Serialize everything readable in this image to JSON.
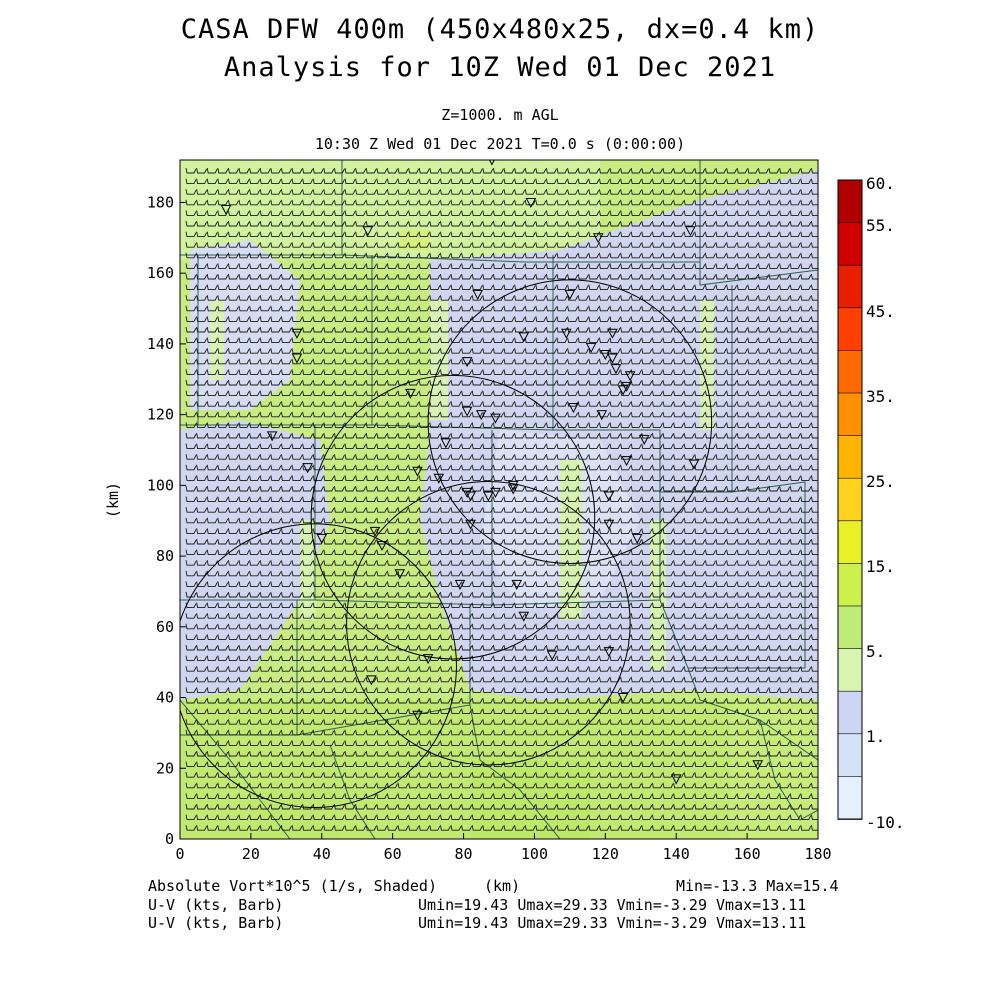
{
  "header": {
    "title_line1": "CASA DFW 400m (450x480x25, dx=0.4 km)",
    "title_line2": "Analysis for 10Z Wed 01 Dec 2021",
    "level": "Z=1000. m AGL",
    "valid_time": "10:30 Z Wed 01 Dec 2021   T=0.0 s (0:00:00)"
  },
  "axes": {
    "x_label": "(km)",
    "y_label": "(km)",
    "x_ticks": [
      "0",
      "20",
      "40",
      "60",
      "80",
      "100",
      "120",
      "140",
      "160",
      "180"
    ],
    "y_ticks": [
      "0",
      "20",
      "40",
      "60",
      "80",
      "100",
      "120",
      "140",
      "160",
      "180"
    ],
    "xlim": [
      0,
      180
    ],
    "ylim": [
      0,
      192
    ]
  },
  "colorbar": {
    "labels": [
      "60.",
      "55.",
      "45.",
      "35.",
      "25.",
      "15.",
      "5.",
      "1.",
      "-10."
    ],
    "colors": [
      "#b00000",
      "#d00000",
      "#e82000",
      "#ff4000",
      "#ff6a00",
      "#ff9000",
      "#ffb400",
      "#ffd21e",
      "#e8f028",
      "#cdf04a",
      "#c0ec7a",
      "#d8f4b0",
      "#ccd6f4",
      "#d4e2f8",
      "#e4f0fc"
    ]
  },
  "footer": {
    "field_label": "Absolute Vort*10^5 (1/s, Shaded)",
    "x_unit": "(km)",
    "minmax": "Min=-13.3 Max=15.4",
    "barb_label_1": "U-V (kts, Barb)",
    "barb_stats_1": "Umin=19.43 Umax=29.33 Vmin=-3.29 Vmax=13.11",
    "barb_label_2": "U-V (kts, Barb)",
    "barb_stats_2": "Umin=19.43 Umax=29.33 Vmin=-3.29 Vmax=13.11"
  },
  "map": {
    "radar_rings_km": [
      {
        "cx": 87,
        "cy": 61,
        "r": 40
      },
      {
        "cx": 110,
        "cy": 118,
        "r": 40
      },
      {
        "cx": 77,
        "cy": 91,
        "r": 40
      },
      {
        "cx": 38,
        "cy": 49,
        "r": 40
      }
    ],
    "stations_km": [
      [
        13,
        178
      ],
      [
        88,
        192
      ],
      [
        99,
        180
      ],
      [
        53,
        172
      ],
      [
        118,
        170
      ],
      [
        144,
        172
      ],
      [
        84,
        154
      ],
      [
        110,
        154
      ],
      [
        33,
        143
      ],
      [
        97,
        142
      ],
      [
        109,
        143
      ],
      [
        122,
        143
      ],
      [
        33,
        136
      ],
      [
        81,
        135
      ],
      [
        116,
        139
      ],
      [
        120,
        137
      ],
      [
        122,
        136
      ],
      [
        123,
        133
      ],
      [
        127,
        131
      ],
      [
        126,
        128
      ],
      [
        125,
        127
      ],
      [
        65,
        126
      ],
      [
        81,
        121
      ],
      [
        85,
        120
      ],
      [
        89,
        119
      ],
      [
        111,
        122
      ],
      [
        119,
        120
      ],
      [
        26,
        114
      ],
      [
        75,
        112
      ],
      [
        131,
        113
      ],
      [
        36,
        105
      ],
      [
        67,
        104
      ],
      [
        73,
        102
      ],
      [
        126,
        107
      ],
      [
        145,
        106
      ],
      [
        81,
        98
      ],
      [
        82,
        97
      ],
      [
        87,
        97
      ],
      [
        89,
        98
      ],
      [
        94,
        100
      ],
      [
        94,
        99
      ],
      [
        121,
        97
      ],
      [
        82,
        89
      ],
      [
        55,
        87
      ],
      [
        57,
        83
      ],
      [
        121,
        89
      ],
      [
        129,
        85
      ],
      [
        40,
        85
      ],
      [
        62,
        75
      ],
      [
        79,
        72
      ],
      [
        95,
        72
      ],
      [
        97,
        63
      ],
      [
        70,
        51
      ],
      [
        105,
        52
      ],
      [
        121,
        53
      ],
      [
        54,
        45
      ],
      [
        125,
        40
      ],
      [
        67,
        35
      ],
      [
        140,
        17
      ],
      [
        163,
        21
      ]
    ]
  }
}
